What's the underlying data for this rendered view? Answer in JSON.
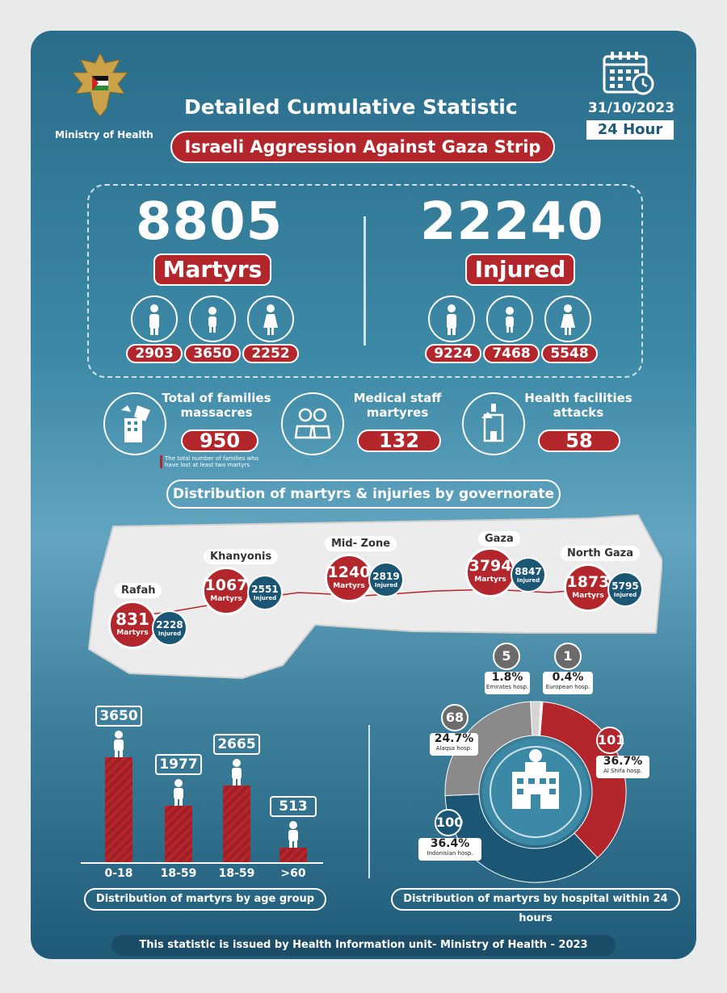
{
  "header": {
    "ministry": "Ministry of Health",
    "title": "Detailed Cumulative Statistic",
    "subtitle": "Israeli Aggression Against Gaza Strip",
    "date": "31/10/2023",
    "period": "24 Hour"
  },
  "martyrs": {
    "total": "8805",
    "label": "Martyrs",
    "men": "2903",
    "children": "3650",
    "women": "2252"
  },
  "injured": {
    "total": "22240",
    "label": "Injured",
    "men": "9224",
    "children": "7468",
    "women": "5548"
  },
  "stats": {
    "families_label_1": "Total of families",
    "families_label_2": "massacres",
    "families_value": "950",
    "families_note_1": "The total number of families who",
    "families_note_2": "have lost at least two martyrs",
    "medical_label_1": "Medical staff",
    "medical_label_2": "martyres",
    "medical_value": "132",
    "facilities_label_1": "Health facilities",
    "facilities_label_2": "attacks",
    "facilities_value": "58"
  },
  "governorates": {
    "section_title": "Distribution of martyrs & injuries by governorate",
    "martyrs_word": "Martyrs",
    "injured_word": "Injured",
    "items": [
      {
        "name": "Rafah",
        "martyrs": "831",
        "injured": "2228"
      },
      {
        "name": "Khanyonis",
        "martyrs": "1067",
        "injured": "2551"
      },
      {
        "name": "Mid- Zone",
        "martyrs": "1240",
        "injured": "2819"
      },
      {
        "name": "Gaza",
        "martyrs": "3794",
        "injured": "8847"
      },
      {
        "name": "North Gaza",
        "martyrs": "1873",
        "injured": "5795"
      }
    ]
  },
  "age_chart": {
    "section_title": "Distribution of martyrs by age group",
    "chart_data": {
      "type": "bar",
      "categories": [
        "0-18",
        "18-59",
        "18-59",
        ">60"
      ],
      "values": [
        3650,
        1977,
        2665,
        513
      ]
    }
  },
  "hospital_chart": {
    "section_title": "Distribution of martyrs by hospital within 24 hours",
    "chart_data": {
      "type": "pie",
      "labels": [
        "Al Shifa hosp.",
        "Indonisian hosp.",
        "Alaqsa hosp.",
        "Emirates hosp.",
        "European hosp."
      ],
      "values": [
        101,
        100,
        68,
        5,
        1
      ],
      "percents": [
        "36.7%",
        "36.4%",
        "24.7%",
        "1.8%",
        "0.4%"
      ],
      "colors": [
        "#b3262b",
        "#1b5675",
        "#8a8a8a",
        "#d4d4d4",
        "#f2f2f2"
      ]
    }
  },
  "footer": "This statistic is issued by Health Information unit- Ministry of Health - 2023"
}
